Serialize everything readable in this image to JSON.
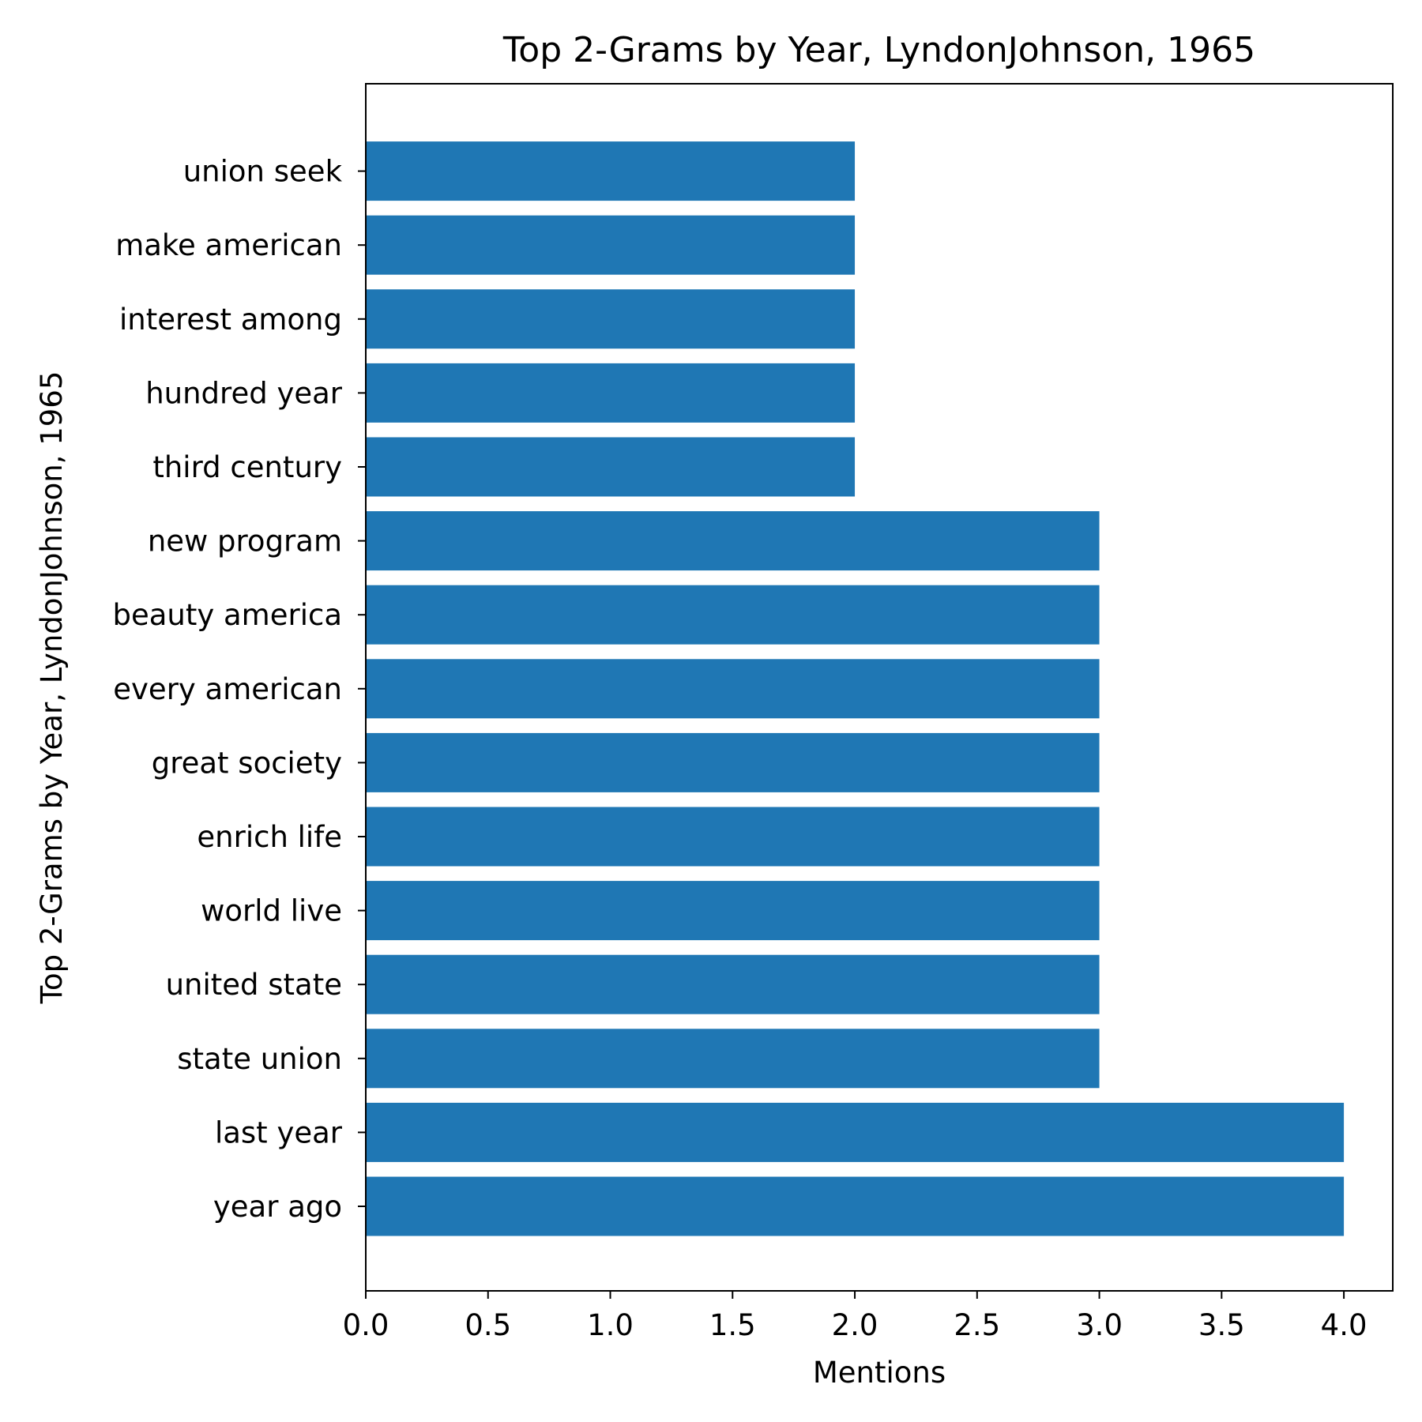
{
  "chart_data": {
    "type": "bar",
    "orientation": "horizontal",
    "title": "Top 2-Grams by Year, LyndonJohnson, 1965",
    "xlabel": "Mentions",
    "ylabel": "Top 2-Grams by Year, LyndonJohnson, 1965",
    "categories": [
      "year ago",
      "last year",
      "state union",
      "united state",
      "world live",
      "enrich life",
      "great society",
      "every american",
      "beauty america",
      "new program",
      "third century",
      "hundred year",
      "interest among",
      "make american",
      "union seek"
    ],
    "values": [
      4,
      4,
      3,
      3,
      3,
      3,
      3,
      3,
      3,
      3,
      2,
      2,
      2,
      2,
      2
    ],
    "xlim": [
      0,
      4.2
    ],
    "xticks": [
      "0.0",
      "0.5",
      "1.0",
      "1.5",
      "2.0",
      "2.5",
      "3.0",
      "3.5",
      "4.0"
    ],
    "grid": false,
    "bar_color": "#1f77b4"
  }
}
